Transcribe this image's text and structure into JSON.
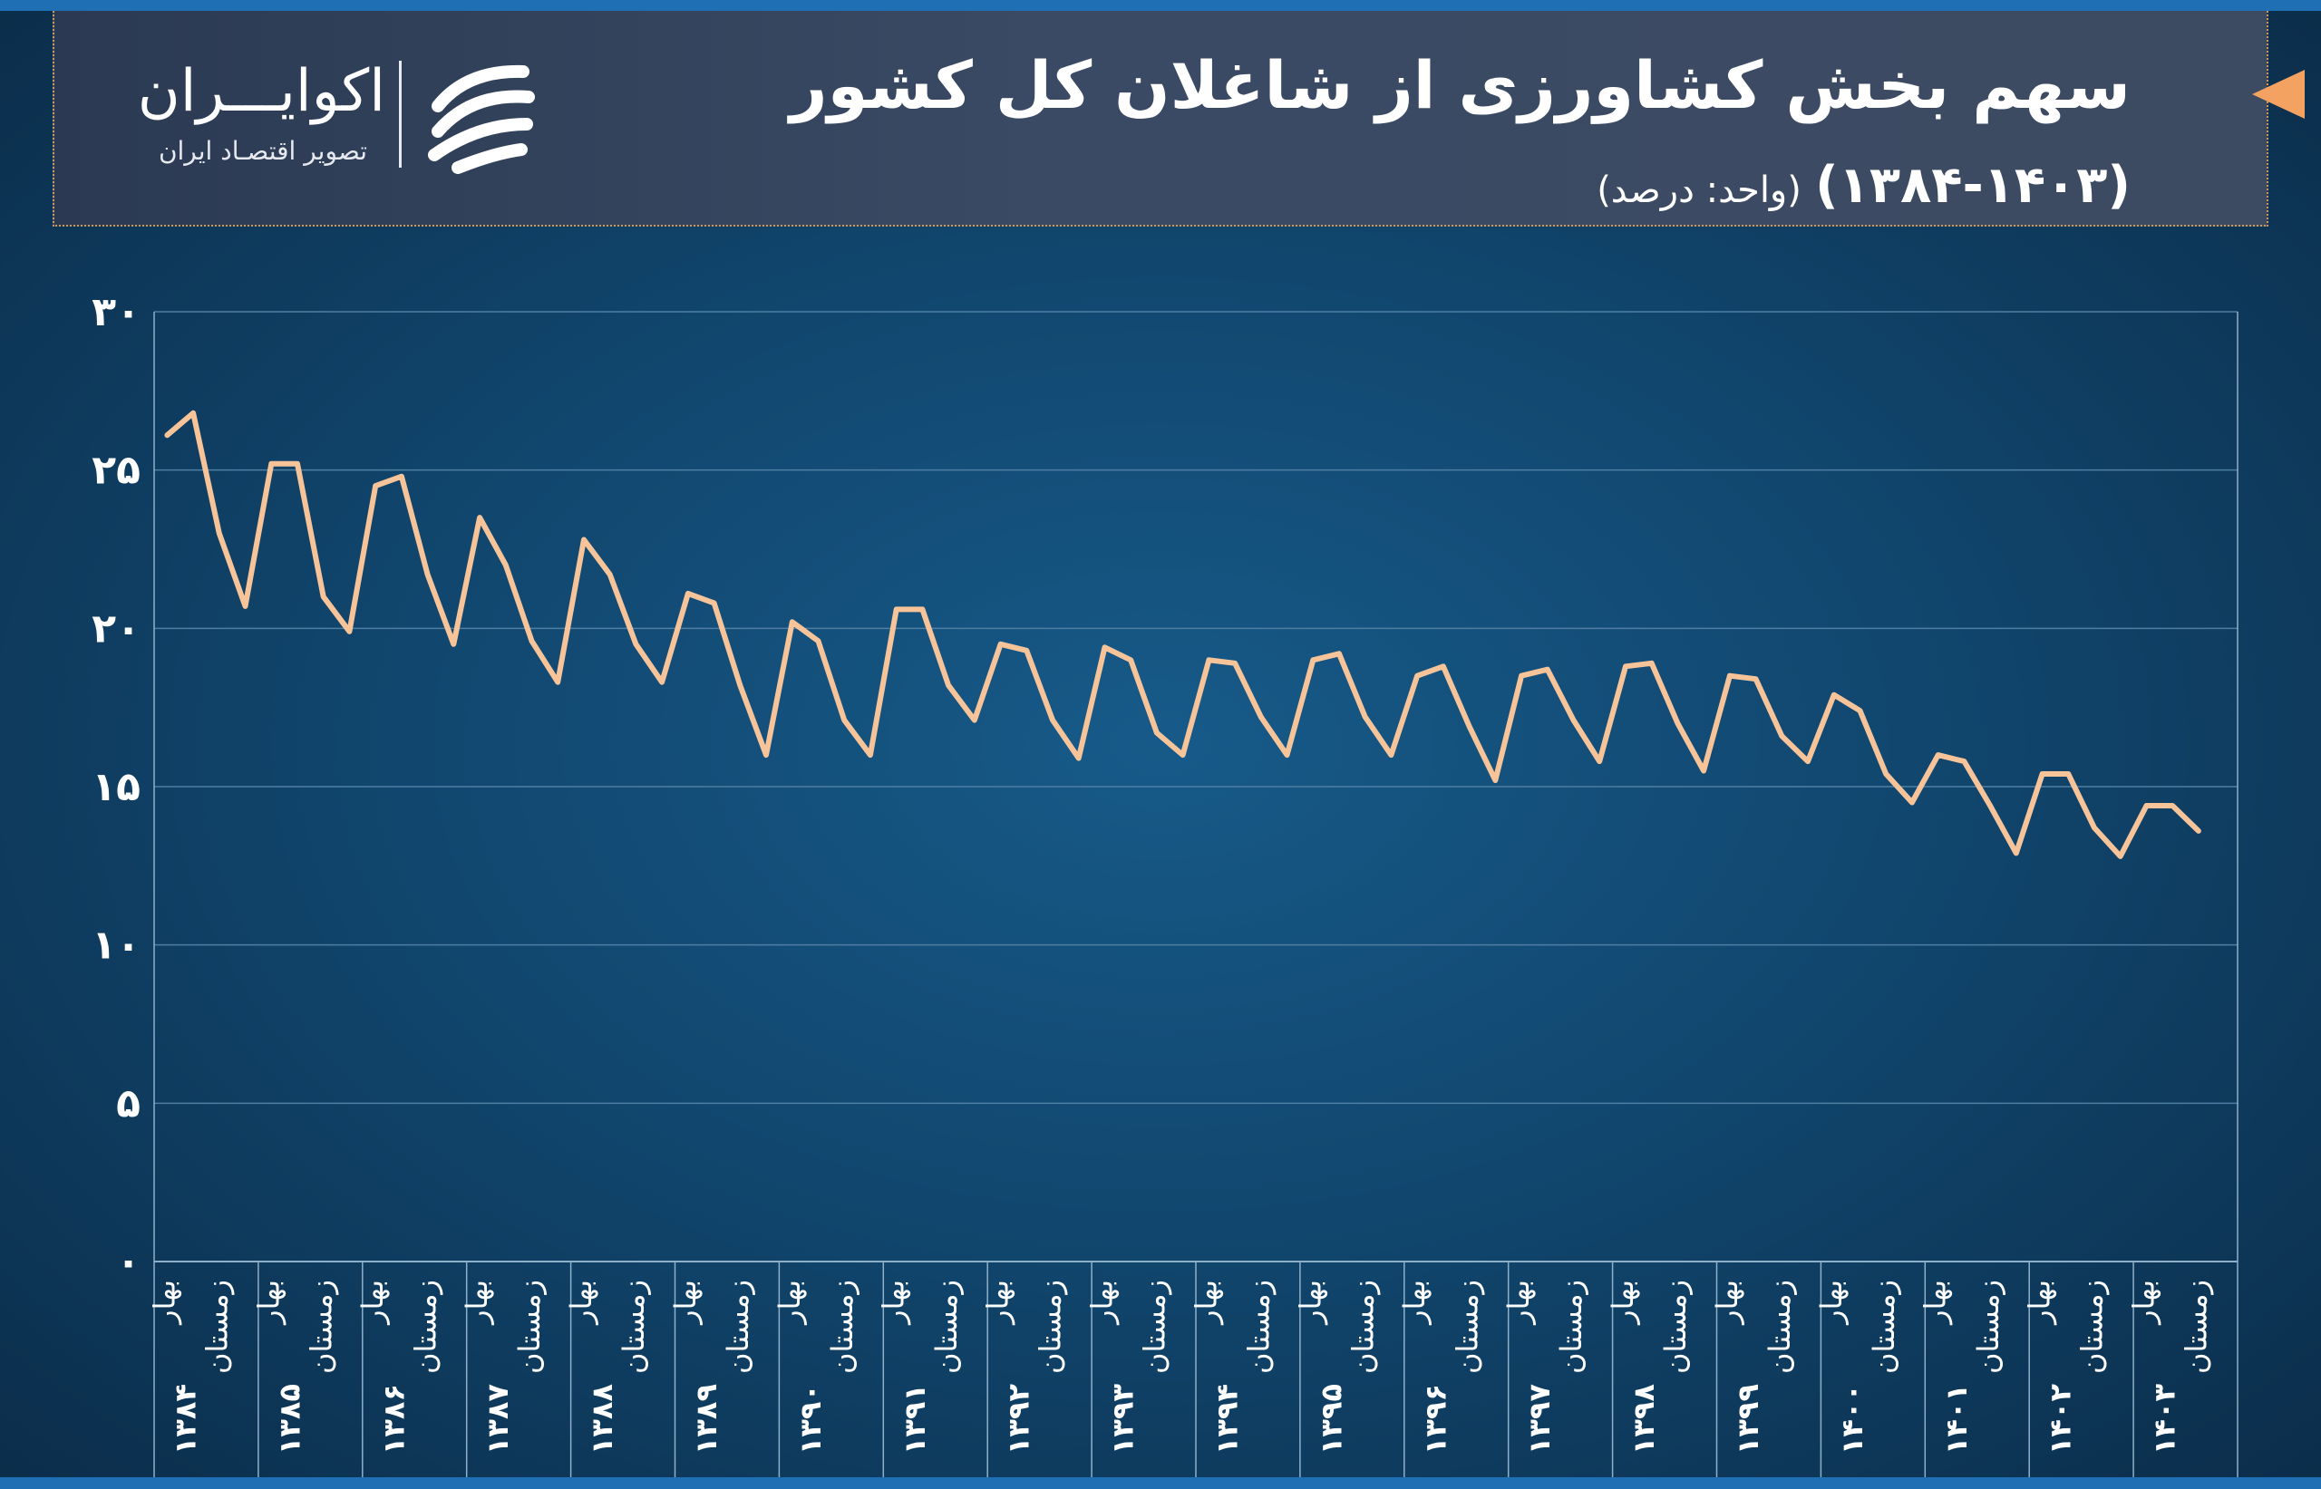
{
  "header": {
    "title": "سهم بخش کشاورزی از شاغلان کل کشور",
    "subtitle_years": "(۱۳۸۴-۱۴۰۳)",
    "subtitle_unit": "(واحد: درصد)"
  },
  "logo": {
    "name": "اکوایـــران",
    "tagline": "تصویر اقتصـاد ایران"
  },
  "colors": {
    "line": "#f7c49a",
    "accent": "#f4a261",
    "grid": "#4f7ea3"
  },
  "chart_data": {
    "type": "line",
    "title": "سهم بخش کشاورزی از شاغلان کل کشور",
    "xlabel": "",
    "ylabel": "",
    "ylim": [
      0,
      30
    ],
    "yticks": [
      "۰",
      "۵",
      "۱۰",
      "۱۵",
      "۲۰",
      "۲۵",
      "۳۰"
    ],
    "years": [
      "۱۳۸۴",
      "۱۳۸۵",
      "۱۳۸۶",
      "۱۳۸۷",
      "۱۳۸۸",
      "۱۳۸۹",
      "۱۳۹۰",
      "۱۳۹۱",
      "۱۳۹۲",
      "۱۳۹۳",
      "۱۳۹۴",
      "۱۳۹۵",
      "۱۳۹۶",
      "۱۳۹۷",
      "۱۳۹۸",
      "۱۳۹۹",
      "۱۴۰۰",
      "۱۴۰۱",
      "۱۴۰۲",
      "۱۴۰۳"
    ],
    "season_labels": [
      "بهار",
      "زمستان"
    ],
    "series": [
      {
        "values": [
          26.1,
          26.8,
          23.0,
          20.7,
          25.2,
          25.2,
          21.0,
          19.9,
          24.5,
          24.8,
          21.7,
          19.5,
          23.5,
          22.0,
          19.6,
          18.3,
          22.8,
          21.7,
          19.5,
          18.3,
          21.1,
          20.8,
          18.2,
          16.0,
          20.2,
          19.6,
          17.1,
          16.0,
          20.6,
          20.6,
          18.2,
          17.1,
          19.5,
          19.3,
          17.1,
          15.9,
          19.4,
          19.0,
          16.7,
          16.0,
          19.0,
          18.9,
          17.2,
          16.0,
          19.0,
          19.2,
          17.2,
          16.0,
          18.5,
          18.8,
          16.9,
          15.2,
          18.5,
          18.7,
          17.1,
          15.8,
          18.8,
          18.9,
          17.0,
          15.5,
          18.5,
          18.4,
          16.6,
          15.8,
          17.9,
          17.4,
          15.4,
          14.5,
          16.0,
          15.8,
          14.4,
          12.9,
          15.4,
          15.4,
          13.7,
          12.8,
          14.4,
          14.4,
          13.6
        ]
      }
    ]
  }
}
